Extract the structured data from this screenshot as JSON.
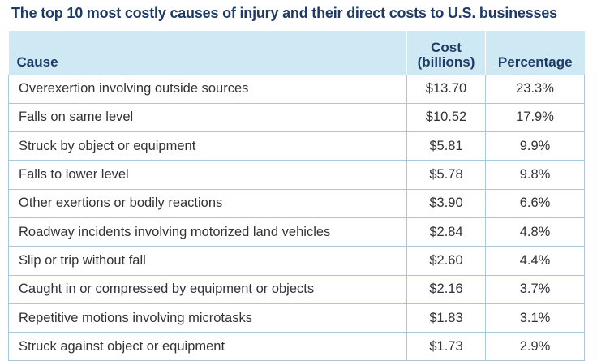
{
  "title": "The top 10 most costly causes of injury and their direct costs to U.S. businesses",
  "headers": {
    "cause": "Cause",
    "cost_line1": "Cost",
    "cost_line2": "(billions)",
    "percentage": "Percentage"
  },
  "rows": [
    {
      "cause": "Overexertion involving outside sources",
      "cost": "$13.70",
      "pct": "23.3%"
    },
    {
      "cause": "Falls on same level",
      "cost": "$10.52",
      "pct": "17.9%"
    },
    {
      "cause": "Struck by object or equipment",
      "cost": "$5.81",
      "pct": "9.9%"
    },
    {
      "cause": "Falls to lower level",
      "cost": "$5.78",
      "pct": "9.8%"
    },
    {
      "cause": "Other exertions or bodily reactions",
      "cost": "$3.90",
      "pct": "6.6%"
    },
    {
      "cause": "Roadway incidents involving motorized land vehicles",
      "cost": "$2.84",
      "pct": "4.8%"
    },
    {
      "cause": "Slip or trip without fall",
      "cost": "$2.60",
      "pct": "4.4%"
    },
    {
      "cause": "Caught in or compressed by equipment or objects",
      "cost": "$2.16",
      "pct": "3.7%"
    },
    {
      "cause": "Repetitive motions involving microtasks",
      "cost": "$1.83",
      "pct": "3.1%"
    },
    {
      "cause": "Struck against object or equipment",
      "cost": "$1.73",
      "pct": "2.9%"
    }
  ]
}
